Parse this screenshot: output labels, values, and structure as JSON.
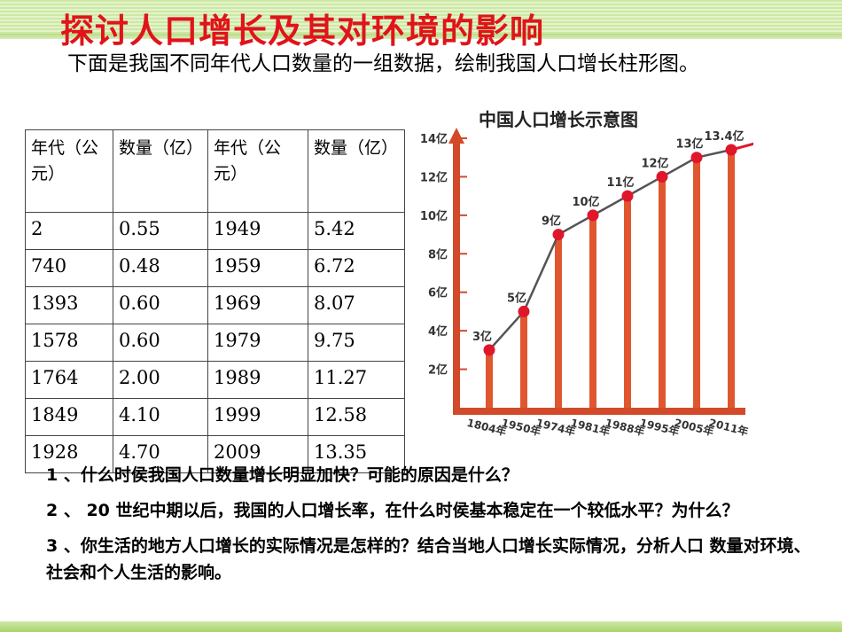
{
  "title": "探讨人口增长及其对环境的影响",
  "intro": "下面是我国不同年代人口数量的一组数据，绘制我国人口增长柱形图。",
  "table": {
    "headers": [
      "年代（公元）",
      "数量（亿）",
      "年代（公元）",
      "数量（亿）"
    ],
    "rows": [
      [
        "2",
        "0.55",
        "1949",
        "5.42"
      ],
      [
        "740",
        "0.48",
        "1959",
        "6.72"
      ],
      [
        "1393",
        "0.60",
        "1969",
        "8.07"
      ],
      [
        "1578",
        "0.60",
        "1979",
        "9.75"
      ],
      [
        "1764",
        "2.00",
        "1989",
        "11.27"
      ],
      [
        "1849",
        "4.10",
        "1999",
        "12.58"
      ],
      [
        "1928",
        "4.70",
        "2009",
        "13.35"
      ]
    ]
  },
  "questions": [
    "1 、什么时侯我国人口数量增长明显加快？可能的原因是什么？",
    "2 、 20 世纪中期以后，我国的人口增长率，在什么时侯基本稳定在一个较低水平？为什么？",
    "3 、你生活的地方人口增长的实际情况是怎样的？结合当地人口增长实际情况，分析人口  数量对环境、社会和个人生活的影响。"
  ],
  "chart_data": {
    "type": "line",
    "title": "中国人口增长示意图",
    "categories": [
      "1804年",
      "1950年",
      "1974年",
      "1981年",
      "1988年",
      "1995年",
      "2005年",
      "2011年"
    ],
    "values": [
      3,
      5,
      9,
      10,
      11,
      12,
      13,
      13.4
    ],
    "point_labels": [
      "3亿",
      "5亿",
      "9亿",
      "10亿",
      "11亿",
      "12亿",
      "13亿",
      "13.4亿"
    ],
    "y_ticks": [
      "2亿",
      "4亿",
      "6亿",
      "8亿",
      "10亿",
      "12亿",
      "14亿"
    ],
    "y_tick_values": [
      2,
      4,
      6,
      8,
      10,
      12,
      14
    ],
    "ylim": [
      0,
      14
    ],
    "colors": {
      "axis": "#d24a2a",
      "bars": "#e0562e",
      "line": "#555555",
      "points": "#e0162a",
      "title": "#222222"
    }
  }
}
